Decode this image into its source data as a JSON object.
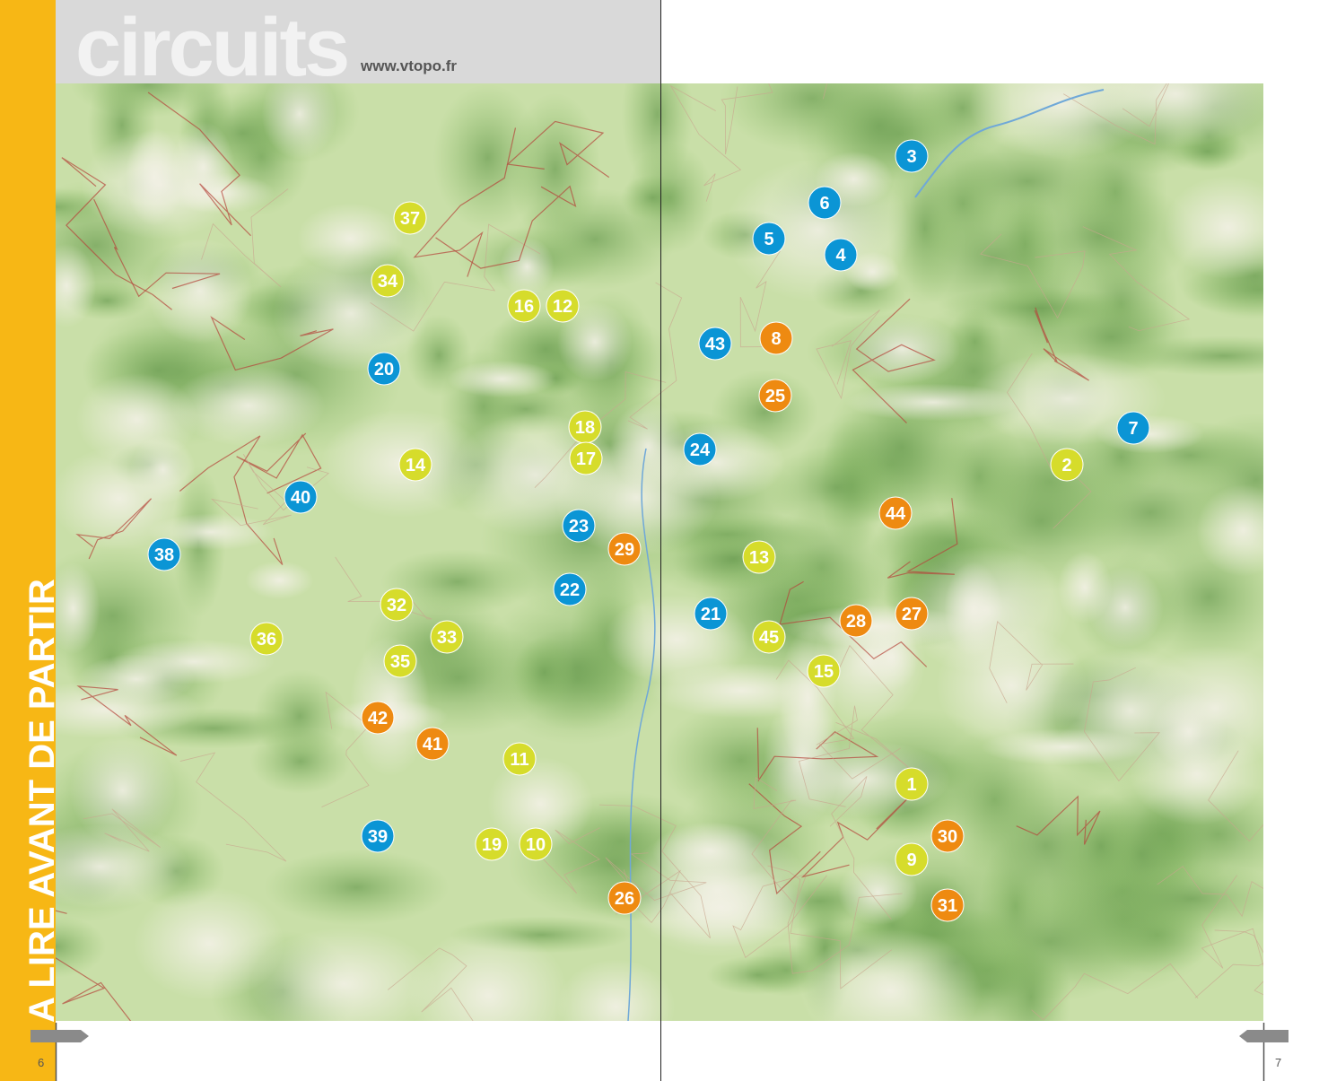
{
  "header": {
    "title": "circuits",
    "url": "www.vtopo.fr"
  },
  "sidebar": "A LIRE AVANT DE PARTIR",
  "pages": [
    "6",
    "7"
  ],
  "markers": [
    {
      "label": "37",
      "color": "#d6dc2b"
    },
    {
      "label": "34",
      "color": "#d6dc2b"
    },
    {
      "label": "16",
      "color": "#d6dc2b"
    },
    {
      "label": "12",
      "color": "#d6dc2b"
    },
    {
      "label": "20",
      "color": "#0b95d5"
    },
    {
      "label": "18",
      "color": "#d6dc2b"
    },
    {
      "label": "17",
      "color": "#d6dc2b"
    },
    {
      "label": "14",
      "color": "#d6dc2b"
    },
    {
      "label": "40",
      "color": "#0b95d5"
    },
    {
      "label": "23",
      "color": "#0b95d5"
    },
    {
      "label": "29",
      "color": "#ee8a11"
    },
    {
      "label": "38",
      "color": "#0b95d5"
    },
    {
      "label": "22",
      "color": "#0b95d5"
    },
    {
      "label": "32",
      "color": "#d6dc2b"
    },
    {
      "label": "33",
      "color": "#d6dc2b"
    },
    {
      "label": "36",
      "color": "#d6dc2b"
    },
    {
      "label": "35",
      "color": "#d6dc2b"
    },
    {
      "label": "42",
      "color": "#ee8a11"
    },
    {
      "label": "41",
      "color": "#ee8a11"
    },
    {
      "label": "11",
      "color": "#d6dc2b"
    },
    {
      "label": "39",
      "color": "#0b95d5"
    },
    {
      "label": "19",
      "color": "#d6dc2b"
    },
    {
      "label": "10",
      "color": "#d6dc2b"
    },
    {
      "label": "26",
      "color": "#ee8a11"
    },
    {
      "label": "3",
      "color": "#0b95d5"
    },
    {
      "label": "6",
      "color": "#0b95d5"
    },
    {
      "label": "5",
      "color": "#0b95d5"
    },
    {
      "label": "4",
      "color": "#0b95d5"
    },
    {
      "label": "43",
      "color": "#0b95d5"
    },
    {
      "label": "8",
      "color": "#ee8a11"
    },
    {
      "label": "25",
      "color": "#ee8a11"
    },
    {
      "label": "7",
      "color": "#0b95d5"
    },
    {
      "label": "24",
      "color": "#0b95d5"
    },
    {
      "label": "2",
      "color": "#d6dc2b"
    },
    {
      "label": "44",
      "color": "#ee8a11"
    },
    {
      "label": "13",
      "color": "#d6dc2b"
    },
    {
      "label": "21",
      "color": "#0b95d5"
    },
    {
      "label": "27",
      "color": "#ee8a11"
    },
    {
      "label": "28",
      "color": "#ee8a11"
    },
    {
      "label": "45",
      "color": "#d6dc2b"
    },
    {
      "label": "15",
      "color": "#d6dc2b"
    },
    {
      "label": "1",
      "color": "#d6dc2b"
    },
    {
      "label": "30",
      "color": "#ee8a11"
    },
    {
      "label": "9",
      "color": "#d6dc2b"
    },
    {
      "label": "31",
      "color": "#ee8a11"
    }
  ]
}
